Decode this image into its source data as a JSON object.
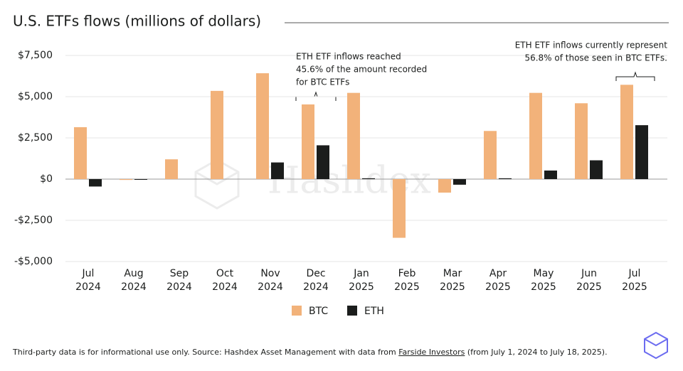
{
  "chart_data": {
    "type": "bar",
    "title": "U.S. ETFs flows (millions of dollars)",
    "categories": [
      "Jul 2024",
      "Aug 2024",
      "Sep 2024",
      "Oct 2024",
      "Nov 2024",
      "Dec 2024",
      "Jan 2025",
      "Feb 2025",
      "Mar 2025",
      "Apr 2025",
      "May 2025",
      "Jun 2025",
      "Jul 2025"
    ],
    "series": [
      {
        "name": "BTC",
        "color": "#f2b27a",
        "values": [
          3150,
          -50,
          1200,
          5350,
          6420,
          4530,
          5230,
          -3560,
          -820,
          2920,
          5230,
          4600,
          5720
        ]
      },
      {
        "name": "ETH",
        "color": "#1b1d1c",
        "values": [
          -450,
          0,
          null,
          null,
          1010,
          2050,
          50,
          null,
          -340,
          50,
          520,
          1140,
          3270
        ]
      }
    ],
    "ylim": [
      -5000,
      7500
    ],
    "yticks": [
      {
        "value": -5000,
        "label": "-$5,000"
      },
      {
        "value": -2500,
        "label": "-$2,500"
      },
      {
        "value": 0,
        "label": "$0"
      },
      {
        "value": 2500,
        "label": "$2,500"
      },
      {
        "value": 5000,
        "label": "$5,000"
      },
      {
        "value": 7500,
        "label": "$7,500"
      }
    ],
    "grid": true,
    "legend": "bottom",
    "annotations": [
      {
        "lines": [
          "ETH ETF inflows reached",
          "45.6% of the amount recorded",
          "for BTC ETFs"
        ]
      },
      {
        "lines": [
          "ETH ETF inflows currently represent",
          "56.8% of those seen in BTC ETFs."
        ]
      }
    ],
    "watermark": "Hashdex",
    "footnote": {
      "before": "Third-party data is for informational use only. Source: Hashdex Asset Management with data from ",
      "link": "Farside Investors",
      "after": " (from July 1, 2024 to July 18, 2025)."
    }
  }
}
